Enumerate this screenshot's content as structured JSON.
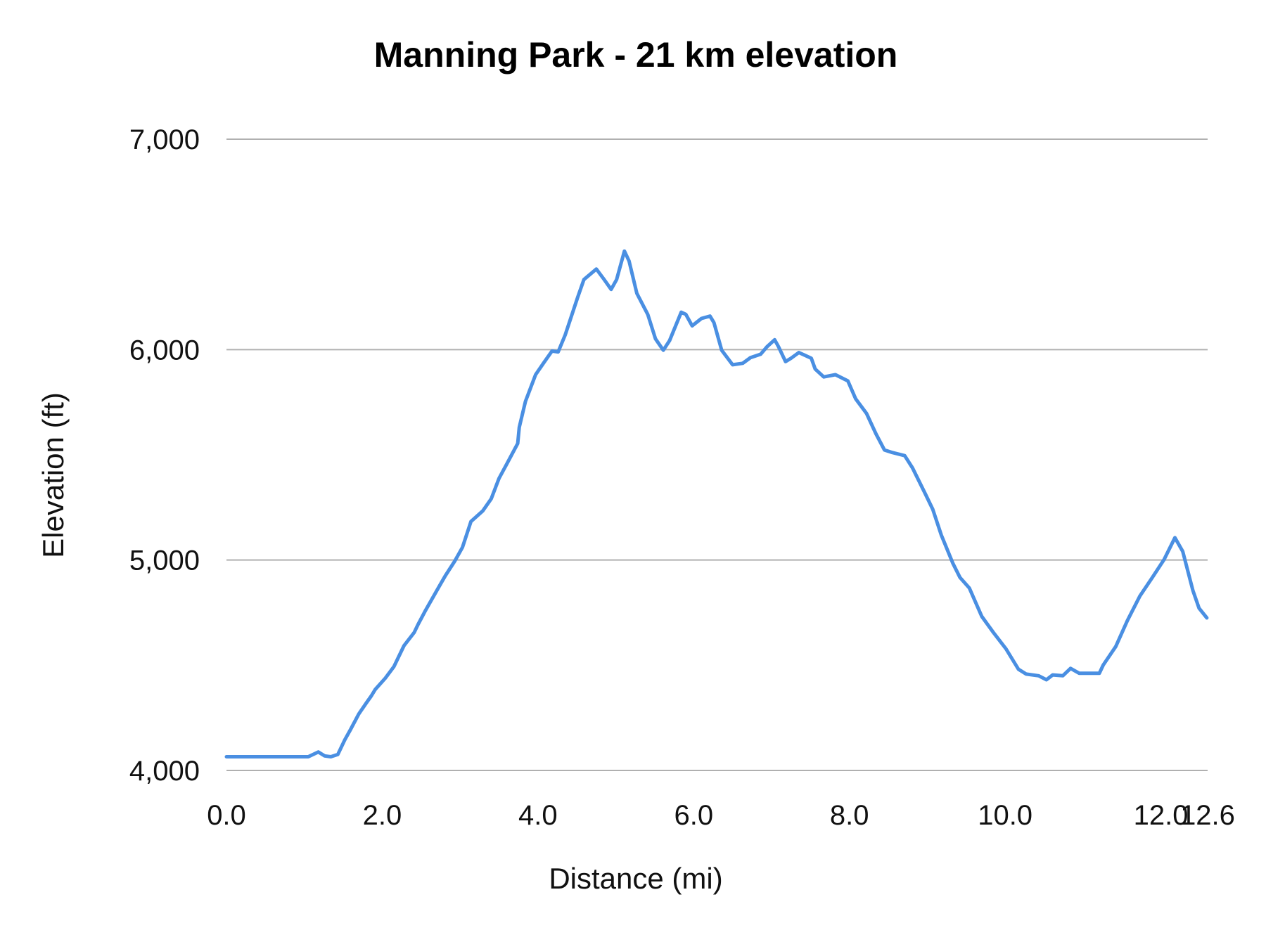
{
  "chart_data": {
    "type": "line",
    "title": "Manning Park - 21 km elevation",
    "xlabel": "Distance (mi)",
    "ylabel": "Elevation (ft)",
    "xlim": [
      0,
      12.6
    ],
    "ylim": [
      4000,
      7000
    ],
    "x_ticks": [
      "0.0",
      "2.0",
      "4.0",
      "6.0",
      "8.0",
      "10.0",
      "12.0",
      "12.6"
    ],
    "x_tick_values": [
      0,
      2,
      4,
      6,
      8,
      10,
      12,
      12.6
    ],
    "y_ticks": [
      "4,000",
      "5,000",
      "6,000",
      "7,000"
    ],
    "y_tick_values": [
      4000,
      5000,
      6000,
      7000
    ],
    "grid": "horizontal",
    "legend": "none",
    "line_color": "#4a8fe2",
    "grid_color": "#b0b0b0",
    "series": [
      {
        "x": [
          0.0,
          1.05,
          1.18,
          1.26,
          1.34,
          1.43,
          1.52,
          1.59,
          1.7,
          1.8,
          1.86,
          1.91,
          2.04,
          2.15,
          2.28,
          2.41,
          2.46,
          2.56,
          2.72,
          2.81,
          2.93,
          3.03,
          3.14,
          3.29,
          3.4,
          3.5,
          3.6,
          3.74,
          3.76,
          3.84,
          3.97,
          4.07,
          4.18,
          4.26,
          4.35,
          4.51,
          4.59,
          4.75,
          4.85,
          4.94,
          5.01,
          5.11,
          5.17,
          5.27,
          5.41,
          5.51,
          5.61,
          5.69,
          5.84,
          5.9,
          5.98,
          6.1,
          6.21,
          6.26,
          6.36,
          6.5,
          6.63,
          6.73,
          6.86,
          6.94,
          7.04,
          7.09,
          7.18,
          7.25,
          7.35,
          7.51,
          7.56,
          7.67,
          7.82,
          7.98,
          8.08,
          8.22,
          8.34,
          8.45,
          8.55,
          8.71,
          8.81,
          8.97,
          9.07,
          9.18,
          9.33,
          9.42,
          9.54,
          9.7,
          9.85,
          10.01,
          10.17,
          10.27,
          10.43,
          10.53,
          10.61,
          10.74,
          10.84,
          10.95,
          11.21,
          11.26,
          11.42,
          11.57,
          11.73,
          11.89,
          12.04,
          12.18,
          12.28,
          12.41,
          12.49,
          12.59
        ],
        "y": [
          4065,
          4065,
          4088,
          4069,
          4065,
          4076,
          4146,
          4192,
          4269,
          4323,
          4354,
          4385,
          4439,
          4493,
          4593,
          4655,
          4694,
          4763,
          4867,
          4925,
          4994,
          5060,
          5183,
          5233,
          5291,
          5388,
          5457,
          5554,
          5631,
          5754,
          5881,
          5935,
          5993,
          5989,
          6070,
          6248,
          6333,
          6383,
          6333,
          6286,
          6333,
          6468,
          6421,
          6267,
          6167,
          6051,
          5997,
          6043,
          6178,
          6167,
          6113,
          6148,
          6159,
          6128,
          5997,
          5928,
          5935,
          5962,
          5978,
          6013,
          6047,
          6013,
          5943,
          5959,
          5986,
          5959,
          5908,
          5870,
          5881,
          5851,
          5766,
          5696,
          5600,
          5523,
          5511,
          5496,
          5438,
          5318,
          5241,
          5118,
          4983,
          4917,
          4867,
          4732,
          4655,
          4578,
          4481,
          4458,
          4450,
          4431,
          4454,
          4450,
          4485,
          4462,
          4462,
          4501,
          4589,
          4713,
          4829,
          4917,
          5002,
          5106,
          5041,
          4856,
          4771,
          4725
        ]
      }
    ]
  }
}
